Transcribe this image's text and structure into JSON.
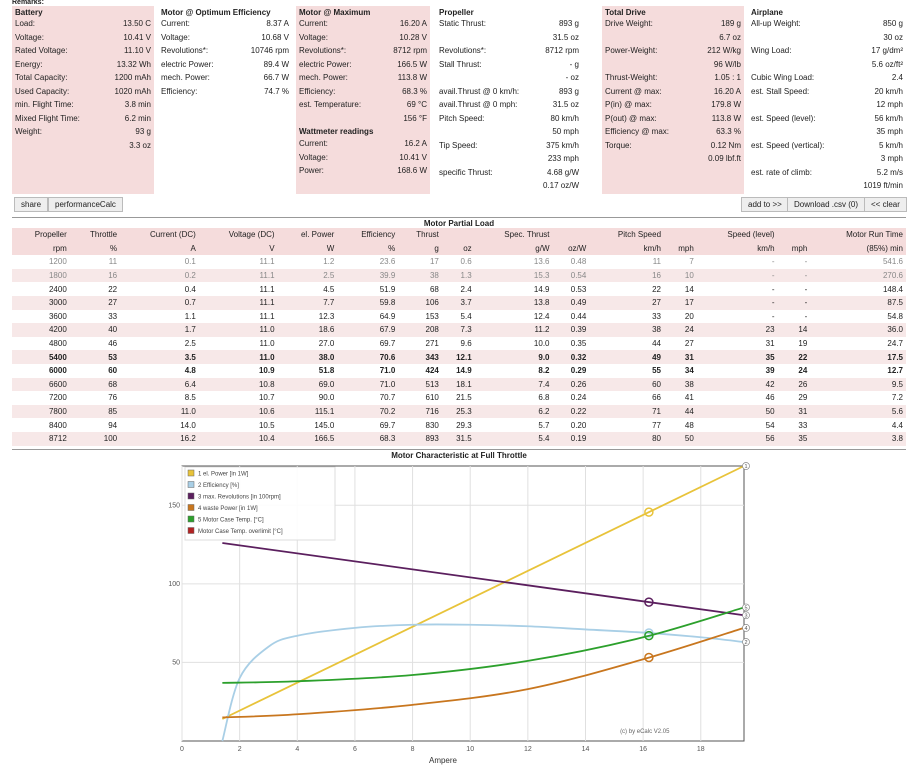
{
  "remarks": "Remarks:",
  "battery": {
    "title": "Battery",
    "rows": [
      {
        "label": "Load:",
        "value": "13.50 C"
      },
      {
        "label": "Voltage:",
        "value": "10.41 V"
      },
      {
        "label": "Rated Voltage:",
        "value": "11.10 V"
      },
      {
        "label": "Energy:",
        "value": "13.32 Wh"
      },
      {
        "label": "Total Capacity:",
        "value": "1200 mAh"
      },
      {
        "label": "Used Capacity:",
        "value": "1020 mAh"
      },
      {
        "label": "min. Flight Time:",
        "value": "3.8 min"
      },
      {
        "label": "Mixed Flight Time:",
        "value": "6.2 min"
      },
      {
        "label": "Weight:",
        "value": "93 g"
      },
      {
        "label": "",
        "value": "3.3 oz"
      }
    ]
  },
  "optimum": {
    "title": "Motor @ Optimum Efficiency",
    "rows": [
      {
        "label": "Current:",
        "value": "8.37 A"
      },
      {
        "label": "Voltage:",
        "value": "10.68 V"
      },
      {
        "label": "Revolutions*:",
        "value": "10746 rpm"
      },
      {
        "label": "electric Power:",
        "value": "89.4 W"
      },
      {
        "label": "mech. Power:",
        "value": "66.7 W"
      },
      {
        "label": "Efficiency:",
        "value": "74.7 %"
      }
    ]
  },
  "maximum": {
    "title": "Motor @ Maximum",
    "rows": [
      {
        "label": "Current:",
        "value": "16.20 A"
      },
      {
        "label": "Voltage:",
        "value": "10.28 V"
      },
      {
        "label": "Revolutions*:",
        "value": "8712 rpm"
      },
      {
        "label": "electric Power:",
        "value": "166.5 W"
      },
      {
        "label": "mech. Power:",
        "value": "113.8 W"
      },
      {
        "label": "Efficiency:",
        "value": "68.3 %"
      },
      {
        "label": "est. Temperature:",
        "value": "69 °C"
      },
      {
        "label": "",
        "value": "156 °F"
      }
    ],
    "wattmeter_title": "Wattmeter readings",
    "wattmeter": [
      {
        "label": "Current:",
        "value": "16.2 A"
      },
      {
        "label": "Voltage:",
        "value": "10.41 V"
      },
      {
        "label": "Power:",
        "value": "168.6 W"
      }
    ]
  },
  "propeller": {
    "title": "Propeller",
    "rows": [
      {
        "label": "Static Thrust:",
        "value": "893 g"
      },
      {
        "label": "",
        "value": "31.5 oz"
      },
      {
        "label": "Revolutions*:",
        "value": "8712 rpm"
      },
      {
        "label": "Stall Thrust:",
        "value": "- g"
      },
      {
        "label": "",
        "value": "- oz"
      },
      {
        "label": "avail.Thrust @ 0 km/h:",
        "value": "893 g"
      },
      {
        "label": "avail.Thrust @ 0 mph:",
        "value": "31.5 oz"
      },
      {
        "label": "Pitch Speed:",
        "value": "80 km/h"
      },
      {
        "label": "",
        "value": "50 mph"
      },
      {
        "label": "Tip Speed:",
        "value": "375 km/h"
      },
      {
        "label": "",
        "value": "233 mph"
      },
      {
        "label": "specific Thrust:",
        "value": "4.68 g/W"
      },
      {
        "label": "",
        "value": "0.17 oz/W"
      }
    ]
  },
  "drive": {
    "title": "Total Drive",
    "rows": [
      {
        "label": "Drive Weight:",
        "value": "189 g"
      },
      {
        "label": "",
        "value": "6.7 oz"
      },
      {
        "label": "Power-Weight:",
        "value": "212 W/kg"
      },
      {
        "label": "",
        "value": "96 W/lb"
      },
      {
        "label": "Thrust-Weight:",
        "value": "1.05 : 1"
      },
      {
        "label": "Current @ max:",
        "value": "16.20 A"
      },
      {
        "label": "P(in) @ max:",
        "value": "179.8 W"
      },
      {
        "label": "P(out) @ max:",
        "value": "113.8 W"
      },
      {
        "label": "Efficiency @ max:",
        "value": "63.3 %"
      },
      {
        "label": "Torque:",
        "value": "0.12 Nm"
      },
      {
        "label": "",
        "value": "0.09 lbf.ft"
      }
    ]
  },
  "airplane": {
    "title": "Airplane",
    "rows": [
      {
        "label": "All-up Weight:",
        "value": "850 g"
      },
      {
        "label": "",
        "value": "30 oz"
      },
      {
        "label": "Wing Load:",
        "value": "17 g/dm²"
      },
      {
        "label": "",
        "value": "5.6 oz/ft²"
      },
      {
        "label": "Cubic Wing Load:",
        "value": "2.4"
      },
      {
        "label": "est. Stall Speed:",
        "value": "20 km/h"
      },
      {
        "label": "",
        "value": "12 mph"
      },
      {
        "label": "est. Speed (level):",
        "value": "56 km/h"
      },
      {
        "label": "",
        "value": "35 mph"
      },
      {
        "label": "est. Speed (vertical):",
        "value": "5 km/h"
      },
      {
        "label": "",
        "value": "3 mph"
      },
      {
        "label": "est. rate of climb:",
        "value": "5.2 m/s"
      },
      {
        "label": "",
        "value": "1019 ft/min"
      }
    ]
  },
  "buttons": {
    "share": "share",
    "perfcalc": "performanceCalc",
    "addto": "add to >>",
    "download": "Download .csv (0)",
    "clear": "<< clear"
  },
  "partial_load": {
    "title": "Motor Partial Load",
    "header1": [
      "Propeller",
      "Throttle",
      "Current (DC)",
      "Voltage (DC)",
      "el. Power",
      "Efficiency",
      "Thrust",
      "",
      "Spec. Thrust",
      "",
      "Pitch Speed",
      "",
      "Speed (level)",
      "",
      "Motor Run Time"
    ],
    "header2": [
      "rpm",
      "%",
      "A",
      "V",
      "W",
      "%",
      "g",
      "oz",
      "g/W",
      "oz/W",
      "km/h",
      "mph",
      "km/h",
      "mph",
      "(85%) min"
    ],
    "rows": [
      {
        "style": "dim",
        "cells": [
          "1200",
          "11",
          "0.1",
          "11.1",
          "1.2",
          "23.6",
          "17",
          "0.6",
          "13.6",
          "0.48",
          "11",
          "7",
          "-",
          "-",
          "541.6"
        ]
      },
      {
        "style": "dim",
        "cells": [
          "1800",
          "16",
          "0.2",
          "11.1",
          "2.5",
          "39.9",
          "38",
          "1.3",
          "15.3",
          "0.54",
          "16",
          "10",
          "-",
          "-",
          "270.6"
        ]
      },
      {
        "style": "",
        "cells": [
          "2400",
          "22",
          "0.4",
          "11.1",
          "4.5",
          "51.9",
          "68",
          "2.4",
          "14.9",
          "0.53",
          "22",
          "14",
          "-",
          "-",
          "148.4"
        ]
      },
      {
        "style": "",
        "cells": [
          "3000",
          "27",
          "0.7",
          "11.1",
          "7.7",
          "59.8",
          "106",
          "3.7",
          "13.8",
          "0.49",
          "27",
          "17",
          "-",
          "-",
          "87.5"
        ]
      },
      {
        "style": "",
        "cells": [
          "3600",
          "33",
          "1.1",
          "11.1",
          "12.3",
          "64.9",
          "153",
          "5.4",
          "12.4",
          "0.44",
          "33",
          "20",
          "-",
          "-",
          "54.8"
        ]
      },
      {
        "style": "",
        "cells": [
          "4200",
          "40",
          "1.7",
          "11.0",
          "18.6",
          "67.9",
          "208",
          "7.3",
          "11.2",
          "0.39",
          "38",
          "24",
          "23",
          "14",
          "36.0"
        ]
      },
      {
        "style": "",
        "cells": [
          "4800",
          "46",
          "2.5",
          "11.0",
          "27.0",
          "69.7",
          "271",
          "9.6",
          "10.0",
          "0.35",
          "44",
          "27",
          "31",
          "19",
          "24.7"
        ]
      },
      {
        "style": "bold",
        "cells": [
          "5400",
          "53",
          "3.5",
          "11.0",
          "38.0",
          "70.6",
          "343",
          "12.1",
          "9.0",
          "0.32",
          "49",
          "31",
          "35",
          "22",
          "17.5"
        ]
      },
      {
        "style": "bold",
        "cells": [
          "6000",
          "60",
          "4.8",
          "10.9",
          "51.8",
          "71.0",
          "424",
          "14.9",
          "8.2",
          "0.29",
          "55",
          "34",
          "39",
          "24",
          "12.7"
        ]
      },
      {
        "style": "",
        "cells": [
          "6600",
          "68",
          "6.4",
          "10.8",
          "69.0",
          "71.0",
          "513",
          "18.1",
          "7.4",
          "0.26",
          "60",
          "38",
          "42",
          "26",
          "9.5"
        ]
      },
      {
        "style": "",
        "cells": [
          "7200",
          "76",
          "8.5",
          "10.7",
          "90.0",
          "70.7",
          "610",
          "21.5",
          "6.8",
          "0.24",
          "66",
          "41",
          "46",
          "29",
          "7.2"
        ]
      },
      {
        "style": "",
        "cells": [
          "7800",
          "85",
          "11.0",
          "10.6",
          "115.1",
          "70.2",
          "716",
          "25.3",
          "6.2",
          "0.22",
          "71",
          "44",
          "50",
          "31",
          "5.6"
        ]
      },
      {
        "style": "",
        "cells": [
          "8400",
          "94",
          "14.0",
          "10.5",
          "145.0",
          "69.7",
          "830",
          "29.3",
          "5.7",
          "0.20",
          "77",
          "48",
          "54",
          "33",
          "4.4"
        ]
      },
      {
        "style": "",
        "cells": [
          "8712",
          "100",
          "16.2",
          "10.4",
          "166.5",
          "68.3",
          "893",
          "31.5",
          "5.4",
          "0.19",
          "80",
          "50",
          "56",
          "35",
          "3.8"
        ]
      }
    ]
  },
  "chart_data": {
    "type": "line",
    "title": "Motor Characteristic at Full Throttle",
    "xlabel": "Ampere",
    "ylabel": "",
    "xlim": [
      0,
      19.5
    ],
    "ylim": [
      0,
      175
    ],
    "xticks": [
      0,
      2,
      4,
      6,
      8,
      10,
      12,
      14,
      16,
      18
    ],
    "yticks": [
      50,
      100,
      150
    ],
    "grid": true,
    "legend_position": "top-left",
    "credit": "(c) by eCalc V2.05",
    "marker_x": 16.2,
    "series": [
      {
        "name": "el. Power [in 1W]",
        "end_label": "1",
        "color": "#e8c33a",
        "x": [
          1.4,
          19.5
        ],
        "y": [
          14,
          175
        ]
      },
      {
        "name": "Efficiency [%]",
        "end_label": "2",
        "color": "#a9cfe6",
        "x": [
          1.4,
          2,
          3,
          4,
          6,
          8,
          10,
          12,
          14,
          16,
          18,
          19.5
        ],
        "y": [
          0,
          40,
          60,
          67,
          72,
          74,
          74,
          73,
          71,
          69,
          66,
          63
        ]
      },
      {
        "name": "max. Revolutions [in 100rpm]",
        "end_label": "3",
        "color": "#5b1f5e",
        "x": [
          1.4,
          19.5
        ],
        "y": [
          126,
          80
        ]
      },
      {
        "name": "waste Power [in 1W]",
        "end_label": "4",
        "color": "#c8761e",
        "x": [
          1.4,
          4,
          8,
          12,
          16,
          19.5
        ],
        "y": [
          15,
          17,
          23,
          33,
          52,
          72
        ]
      },
      {
        "name": "Motor Case Temp. [°C]",
        "end_label": "5",
        "color": "#2ca02c",
        "x": [
          1.4,
          4,
          8,
          12,
          16,
          19.5
        ],
        "y": [
          37,
          38,
          42,
          51,
          66,
          85
        ]
      },
      {
        "name": "Motor Case Temp. overlimit [°C]",
        "end_label": "",
        "color": "#b22222",
        "x": [],
        "y": []
      }
    ]
  }
}
